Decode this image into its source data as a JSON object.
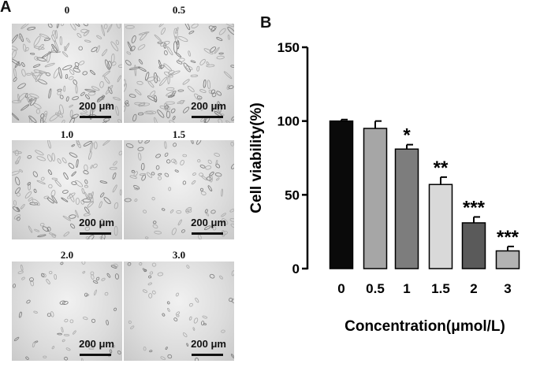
{
  "panel_a": {
    "letter": "A",
    "images": [
      {
        "label": "0",
        "scale": "200 μm",
        "density": 150,
        "spread": 1.0
      },
      {
        "label": "0.5",
        "scale": "200 μm",
        "density": 130,
        "spread": 1.0
      },
      {
        "label": "1.0",
        "scale": "200 μm",
        "density": 110,
        "spread": 0.8
      },
      {
        "label": "1.5",
        "scale": "200 μm",
        "density": 85,
        "spread": 0.6
      },
      {
        "label": "2.0",
        "scale": "200 μm",
        "density": 60,
        "spread": 0.45
      },
      {
        "label": "3.0",
        "scale": "200 μm",
        "density": 45,
        "spread": 0.4
      }
    ]
  },
  "panel_b": {
    "letter": "B"
  },
  "chart_data": {
    "type": "bar",
    "categories": [
      "0",
      "0.5",
      "1",
      "1.5",
      "2",
      "3"
    ],
    "values": [
      100,
      95,
      81,
      57,
      31,
      12
    ],
    "errors": [
      1,
      5,
      3,
      5,
      4,
      3
    ],
    "significance": [
      "",
      "",
      "*",
      "**",
      "***",
      "***"
    ],
    "bar_colors": [
      "#0a0a0a",
      "#a6a6a6",
      "#7d7d7d",
      "#d9d9d9",
      "#5a5a5a",
      "#b3b3b3"
    ],
    "title": "",
    "xlabel": "Concentration(μmol/L)",
    "ylabel": "Cell viability(%)",
    "ylim": [
      0,
      150
    ],
    "yticks": [
      0,
      50,
      100,
      150
    ],
    "grid": false
  }
}
